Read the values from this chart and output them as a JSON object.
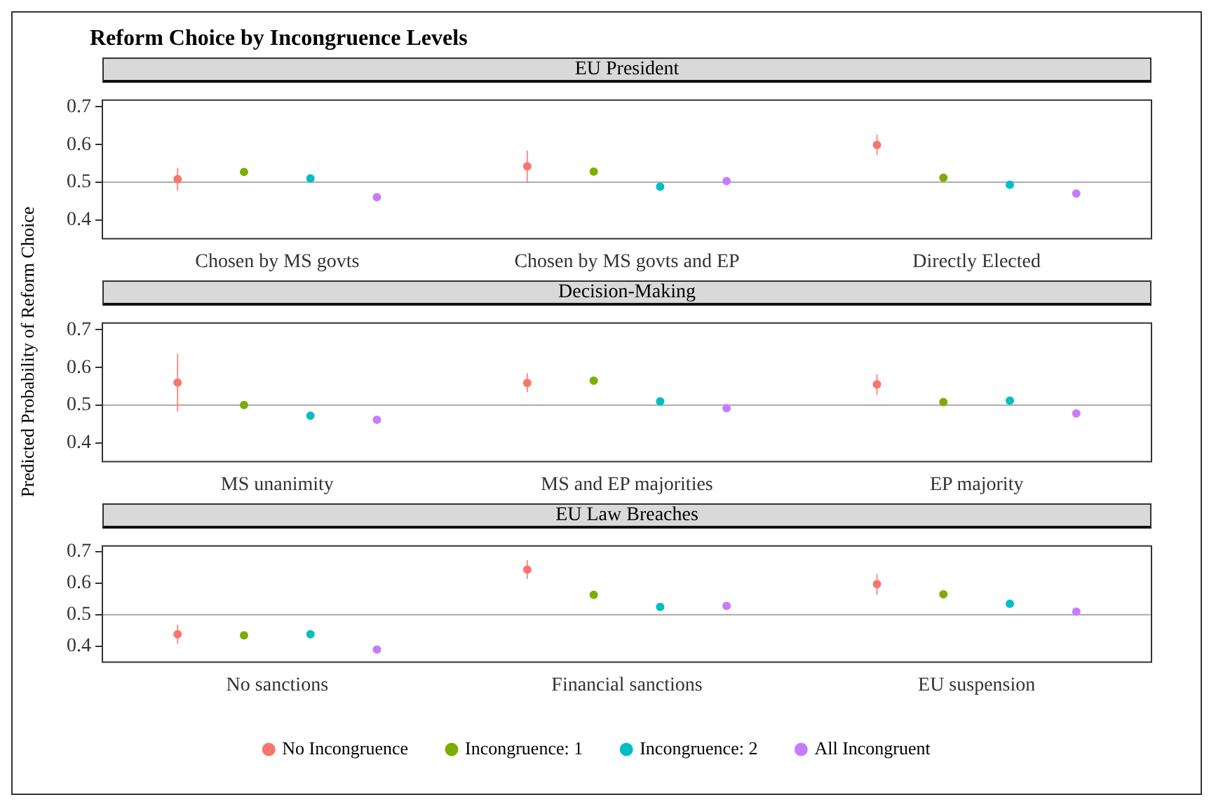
{
  "chart_data": [
    {
      "type": "scatter",
      "title": "Reform Choice by Incongruence Levels",
      "subtitle": "EU President",
      "categories": [
        "Chosen by MS govts",
        "Chosen by MS govts and EP",
        "Directly Elected"
      ],
      "ylim": [
        0.35,
        0.718
      ],
      "yticks": [
        0.4,
        0.5,
        0.6,
        0.7
      ],
      "grid": false,
      "marker": "circle",
      "legend": false,
      "ref_lines": [
        {
          "axis": "y",
          "value": 0.5,
          "color": "#b3b3b3"
        }
      ],
      "series": [
        {
          "color": "#f8766d",
          "values": [
            0.508,
            0.542,
            0.599
          ],
          "errors": [
            [
              0.477,
              0.538
            ],
            [
              0.5,
              0.584
            ],
            [
              0.572,
              0.626
            ]
          ]
        },
        {
          "color": "#7cae00",
          "values": [
            0.527,
            0.528,
            0.512
          ],
          "errors": [
            [
              0.521,
              0.533
            ],
            [
              0.522,
              0.534
            ],
            [
              0.506,
              0.518
            ]
          ]
        },
        {
          "color": "#00bfc4",
          "values": [
            0.51,
            0.488,
            0.493
          ]
        },
        {
          "color": "#c77cff",
          "values": [
            0.46,
            0.503,
            0.47
          ]
        }
      ]
    },
    {
      "type": "scatter",
      "subtitle": "Decision-Making",
      "ylabel": "Predicted Probability of Reform Choice",
      "categories": [
        "MS unanimity",
        "MS and EP majorities",
        "EP majority"
      ],
      "ylim": [
        0.35,
        0.718
      ],
      "yticks": [
        0.4,
        0.5,
        0.6,
        0.7
      ],
      "grid": false,
      "marker": "circle",
      "legend": false,
      "ref_lines": [
        {
          "axis": "y",
          "value": 0.5,
          "color": "#b3b3b3"
        }
      ],
      "series": [
        {
          "color": "#f8766d",
          "values": [
            0.56,
            0.559,
            0.555
          ],
          "errors": [
            [
              0.483,
              0.637
            ],
            [
              0.534,
              0.585
            ],
            [
              0.527,
              0.582
            ]
          ]
        },
        {
          "color": "#7cae00",
          "values": [
            0.5,
            0.565,
            0.508
          ],
          "errors": [
            [
              0.494,
              0.506
            ],
            [
              0.559,
              0.571
            ],
            [
              0.502,
              0.514
            ]
          ]
        },
        {
          "color": "#00bfc4",
          "values": [
            0.472,
            0.51,
            0.512
          ]
        },
        {
          "color": "#c77cff",
          "values": [
            0.461,
            0.492,
            0.478
          ]
        }
      ]
    },
    {
      "type": "scatter",
      "subtitle": "EU Law Breaches",
      "categories": [
        "No sanctions",
        "Financial sanctions",
        "EU suspension"
      ],
      "ylim": [
        0.35,
        0.718
      ],
      "yticks": [
        0.4,
        0.5,
        0.6,
        0.7
      ],
      "grid": false,
      "marker": "circle",
      "legend": "bottom",
      "ref_lines": [
        {
          "axis": "y",
          "value": 0.5,
          "color": "#b3b3b3"
        }
      ],
      "series": [
        {
          "name": "No Incongruence",
          "color": "#f8766d",
          "values": [
            0.438,
            0.643,
            0.597
          ],
          "errors": [
            [
              0.408,
              0.468
            ],
            [
              0.613,
              0.673
            ],
            [
              0.563,
              0.63
            ]
          ]
        },
        {
          "name": "Incongruence: 1",
          "color": "#7cae00",
          "values": [
            0.435,
            0.563,
            0.565
          ],
          "errors": [
            [
              0.429,
              0.441
            ],
            [
              0.557,
              0.569
            ],
            [
              0.559,
              0.571
            ]
          ]
        },
        {
          "name": "Incongruence: 2",
          "color": "#00bfc4",
          "values": [
            0.438,
            0.525,
            0.535
          ]
        },
        {
          "name": "All Incongruent",
          "color": "#c77cff",
          "values": [
            0.39,
            0.528,
            0.51
          ]
        }
      ]
    }
  ]
}
